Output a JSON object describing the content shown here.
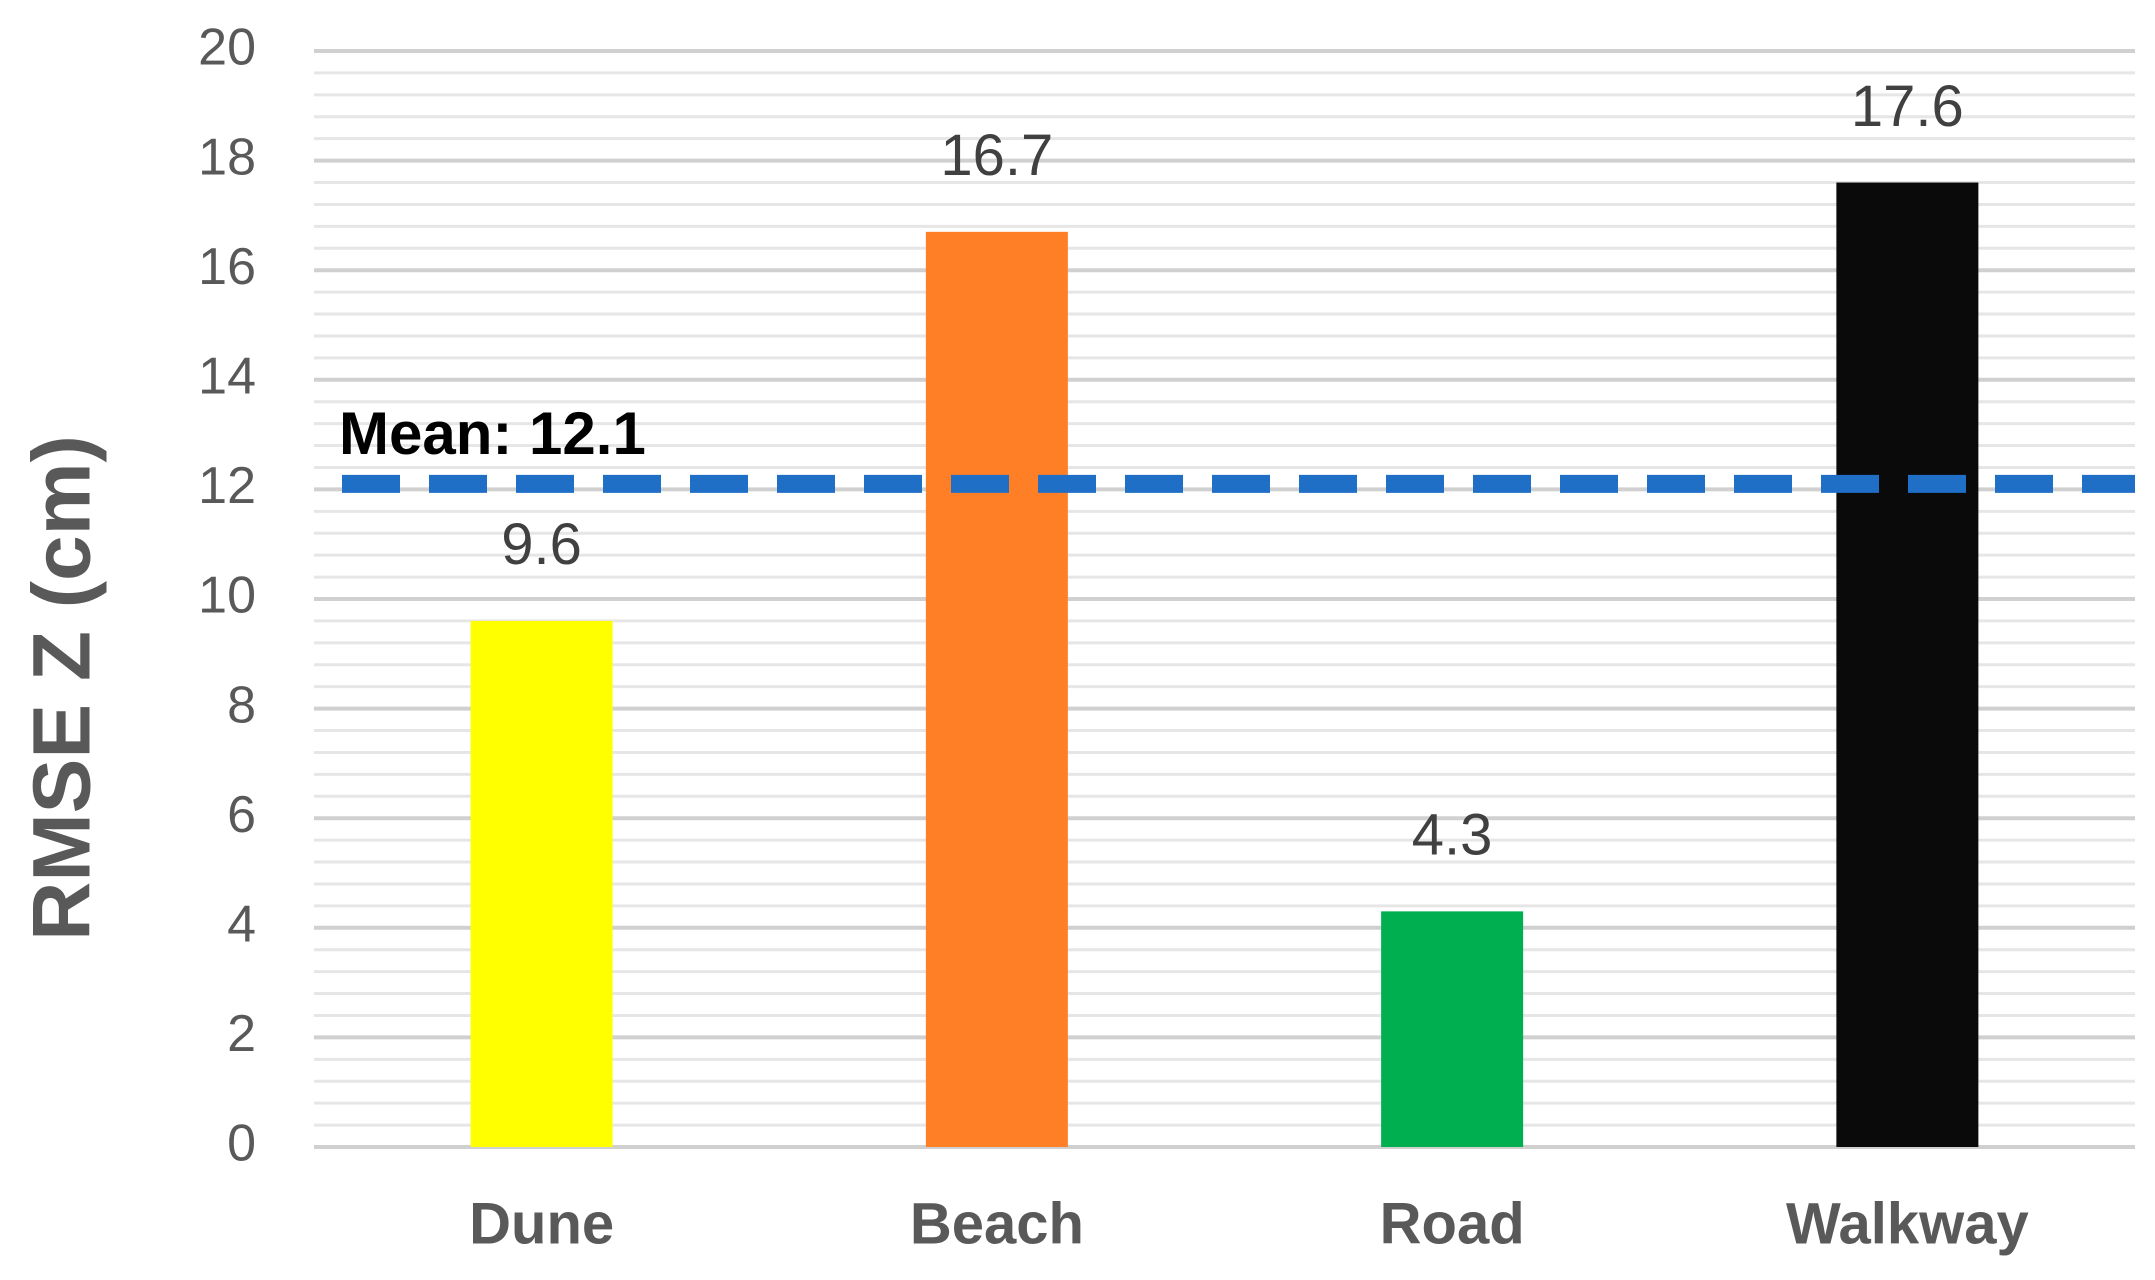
{
  "chart_data": {
    "type": "bar",
    "y_label": "RMSE Z (cm)",
    "categories": [
      "Dune",
      "Beach",
      "Road",
      "Walkway"
    ],
    "values": [
      9.6,
      16.7,
      4.3,
      17.6
    ],
    "colors": [
      "#ffff00",
      "#ff7f27",
      "#00b050",
      "#0a0a0a"
    ],
    "ylim": [
      0,
      20
    ],
    "yticks": [
      0,
      2,
      4,
      6,
      8,
      10,
      12,
      14,
      16,
      18,
      20
    ],
    "grid": true,
    "minor_grid": true,
    "mean": {
      "label": "Mean:",
      "value": 12.1,
      "color": "#1f6fc6"
    }
  }
}
